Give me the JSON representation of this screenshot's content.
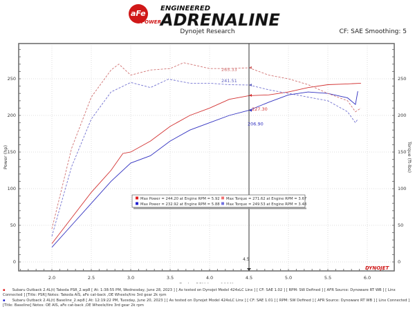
{
  "header": {
    "brand_badge": "aFe POWER",
    "brand_title_small": "ENGINEERED",
    "brand_title": "ADRENALINE",
    "subtitle": "Dynojet Research",
    "cf_info": "CF: SAE Smoothing: 5"
  },
  "chart_data": {
    "type": "line",
    "xlabel": "Engine RPM (rpmx1000)",
    "ylabel_left": "Power (hp)",
    "ylabel_right": "Torque (ft-lbs)",
    "xlim": [
      1.5,
      6.3
    ],
    "ylim": [
      0,
      290
    ],
    "xticks": [
      "2.0",
      "2.5",
      "3.0",
      "3.5",
      "4.0",
      "4.5",
      "5.0",
      "5.5",
      "6.0"
    ],
    "yticks": [
      "0",
      "50",
      "100",
      "150",
      "200",
      "250"
    ],
    "grid": true,
    "cursor": {
      "x": 4.5,
      "label": "4.5"
    },
    "watermark": "DYNOJET",
    "series": [
      {
        "key": "psr_power",
        "color": "#d23030",
        "dash": false,
        "x": [
          2.0,
          2.25,
          2.5,
          2.75,
          2.9,
          3.0,
          3.25,
          3.5,
          3.75,
          4.0,
          4.25,
          4.5,
          4.75,
          5.0,
          5.25,
          5.5,
          5.75,
          5.92
        ],
        "y": [
          25,
          60,
          95,
          125,
          148,
          150,
          165,
          185,
          200,
          210,
          222,
          227,
          228,
          232,
          238,
          242,
          243,
          244
        ]
      },
      {
        "key": "base_power",
        "color": "#3030c0",
        "dash": false,
        "x": [
          2.0,
          2.25,
          2.5,
          2.75,
          3.0,
          3.25,
          3.5,
          3.75,
          4.0,
          4.25,
          4.5,
          4.75,
          5.0,
          5.25,
          5.5,
          5.75,
          5.85,
          5.88
        ],
        "y": [
          20,
          50,
          80,
          110,
          135,
          145,
          165,
          180,
          190,
          200,
          207,
          218,
          228,
          232,
          230,
          224,
          215,
          233
        ]
      },
      {
        "key": "psr_torque",
        "color": "#d07070",
        "dash": true,
        "x": [
          2.0,
          2.25,
          2.5,
          2.75,
          2.85,
          3.0,
          3.25,
          3.5,
          3.67,
          4.0,
          4.25,
          4.5,
          4.75,
          5.0,
          5.25,
          5.5,
          5.75,
          5.85,
          5.92
        ],
        "y": [
          45,
          155,
          225,
          262,
          270,
          255,
          262,
          264,
          272,
          264,
          264,
          265,
          255,
          250,
          242,
          230,
          220,
          205,
          210
        ]
      },
      {
        "key": "base_torque",
        "color": "#7070d0",
        "dash": true,
        "x": [
          2.0,
          2.25,
          2.5,
          2.75,
          3.0,
          3.25,
          3.48,
          3.75,
          4.0,
          4.25,
          4.5,
          4.75,
          5.0,
          5.25,
          5.5,
          5.75,
          5.85,
          5.88
        ],
        "y": [
          35,
          130,
          195,
          232,
          245,
          238,
          249.5,
          244,
          244,
          242,
          241.5,
          235,
          230,
          225,
          220,
          205,
          190,
          195
        ]
      }
    ],
    "cursor_labels": [
      {
        "text": "241.51",
        "color": "#6060c0",
        "y": 241.51
      },
      {
        "text": "265.33",
        "color": "#d07070",
        "y": 265.33
      },
      {
        "text": "227.30",
        "color": "#d23030",
        "y": 227.3
      },
      {
        "text": "206.90",
        "color": "#3030c0",
        "y": 206.9
      }
    ],
    "legend": [
      {
        "color": "#e02020",
        "text": "Max Power = 244.20 at Engine RPM = 5.92"
      },
      {
        "color": "#f07070",
        "text": "Max Torque = 271.62 at Engine RPM = 3.67"
      },
      {
        "color": "#2020d0",
        "text": "Max Power = 232.92 at Engine RPM = 5.88"
      },
      {
        "color": "#7070e0",
        "text": "Max Torque = 249.53 at Engine RPM = 3.48"
      }
    ]
  },
  "footer": [
    {
      "color": "#e02020",
      "text": "Subaru Outback 2.4L(t) Takeda PSR_2.wp8 [ At: 1:38:55 PM, Wednesday, June 28, 2023 ] [ As tested on Dynojet Model 424xLC Linx ] [ CF: SAE 1.02 ] [ RPM: SW Defined ] [ AFR Source: Dynoware RT WB ] [ Linx Connected ] [Title: PSR]  Notes: Takeda AIS, aFe cat-back ,OE Wheels/tire 3rd gear 2k rpm"
    },
    {
      "color": "#2020d0",
      "text": "Subaru Outback 2.4L(t) Baseline_2.wp8 [ At: 12:19:22 PM, Tuesday, June 20, 2023 ] [ As tested on Dynojet Model 424xLC Linx ] [ CF: SAE 1.01 ] [ RPM: SW Defined ] [ AFR Source: Dynoware RT WB ] [ Linx Connected ] [Title: Baseline]  Notes: OE AIS, aFe cat-back ,OE Wheels/tire 3rd gear 2k rpm"
    }
  ]
}
